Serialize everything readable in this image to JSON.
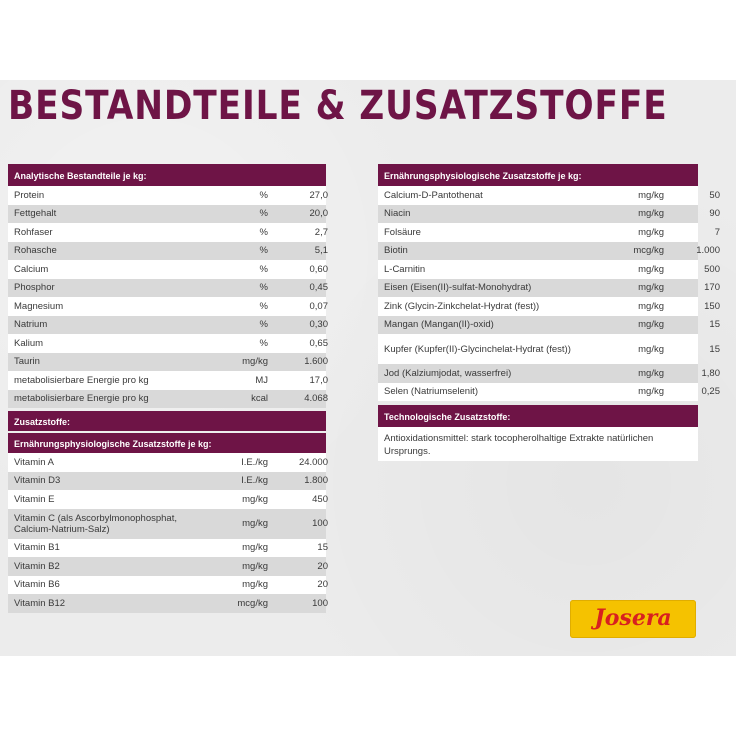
{
  "title": "BESTANDTEILE & ZUSATZSTOFFE",
  "analytische": {
    "header": "Analytische Bestandteile je kg:",
    "rows": [
      {
        "name": "Protein",
        "unit": "%",
        "value": "27,0"
      },
      {
        "name": "Fettgehalt",
        "unit": "%",
        "value": "20,0"
      },
      {
        "name": "Rohfaser",
        "unit": "%",
        "value": "2,7"
      },
      {
        "name": "Rohasche",
        "unit": "%",
        "value": "5,1"
      },
      {
        "name": "Calcium",
        "unit": "%",
        "value": "0,60"
      },
      {
        "name": "Phosphor",
        "unit": "%",
        "value": "0,45"
      },
      {
        "name": "Magnesium",
        "unit": "%",
        "value": "0,07"
      },
      {
        "name": "Natrium",
        "unit": "%",
        "value": "0,30"
      },
      {
        "name": "Kalium",
        "unit": "%",
        "value": "0,65"
      },
      {
        "name": "Taurin",
        "unit": "mg/kg",
        "value": "1.600"
      },
      {
        "name": "metabolisierbare Energie pro kg",
        "unit": "MJ",
        "value": "17,0"
      },
      {
        "name": "metabolisierbare Energie pro kg",
        "unit": "kcal",
        "value": "4.068"
      }
    ]
  },
  "zusatzstoffe": {
    "header": "Zusatzstoffe:",
    "subheader": "Ernährungsphysiologische Zusatzstoffe je kg:",
    "rows": [
      {
        "name": "Vitamin A",
        "unit": "I.E./kg",
        "value": "24.000"
      },
      {
        "name": "Vitamin D3",
        "unit": "I.E./kg",
        "value": "1.800"
      },
      {
        "name": "Vitamin E",
        "unit": "mg/kg",
        "value": "450"
      },
      {
        "name": "Vitamin C (als Ascorbylmonophosphat, Calcium-Natrium-Salz)",
        "unit": "mg/kg",
        "value": "100"
      },
      {
        "name": "Vitamin B1",
        "unit": "mg/kg",
        "value": "15"
      },
      {
        "name": "Vitamin B2",
        "unit": "mg/kg",
        "value": "20"
      },
      {
        "name": "Vitamin B6",
        "unit": "mg/kg",
        "value": "20"
      },
      {
        "name": "Vitamin B12",
        "unit": "mcg/kg",
        "value": "100"
      }
    ]
  },
  "ernaehrung_right": {
    "header": "Ernährungsphysiologische Zusatzstoffe je kg:",
    "rows": [
      {
        "name": "Calcium-D-Pantothenat",
        "unit": "mg/kg",
        "value": "50"
      },
      {
        "name": "Niacin",
        "unit": "mg/kg",
        "value": "90"
      },
      {
        "name": "Folsäure",
        "unit": "mg/kg",
        "value": "7"
      },
      {
        "name": "Biotin",
        "unit": "mcg/kg",
        "value": "1.000"
      },
      {
        "name": "L-Carnitin",
        "unit": "mg/kg",
        "value": "500"
      },
      {
        "name": "Eisen (Eisen(II)-sulfat-Monohydrat)",
        "unit": "mg/kg",
        "value": "170"
      },
      {
        "name": "Zink (Glycin-Zinkchelat-Hydrat (fest))",
        "unit": "mg/kg",
        "value": "150"
      },
      {
        "name": "Mangan (Mangan(II)-oxid)",
        "unit": "mg/kg",
        "value": "15"
      },
      {
        "name": "Kupfer (Kupfer(II)-Glycinchelat-Hydrat (fest))",
        "unit": "mg/kg",
        "value": "15"
      },
      {
        "name": "Jod (Kalziumjodat, wasserfrei)",
        "unit": "mg/kg",
        "value": "1,80"
      },
      {
        "name": "Selen (Natriumselenit)",
        "unit": "mg/kg",
        "value": "0,25"
      }
    ]
  },
  "technologische": {
    "header": "Technologische Zusatzstoffe:",
    "text": "Antioxidationsmittel: stark tocopherolhaltige Extrakte natürlichen Ursprungs."
  },
  "logo": {
    "text": "Josera"
  },
  "colors": {
    "accent": "#6e1446",
    "logo_bg": "#f5c200",
    "logo_text": "#d8201f"
  }
}
